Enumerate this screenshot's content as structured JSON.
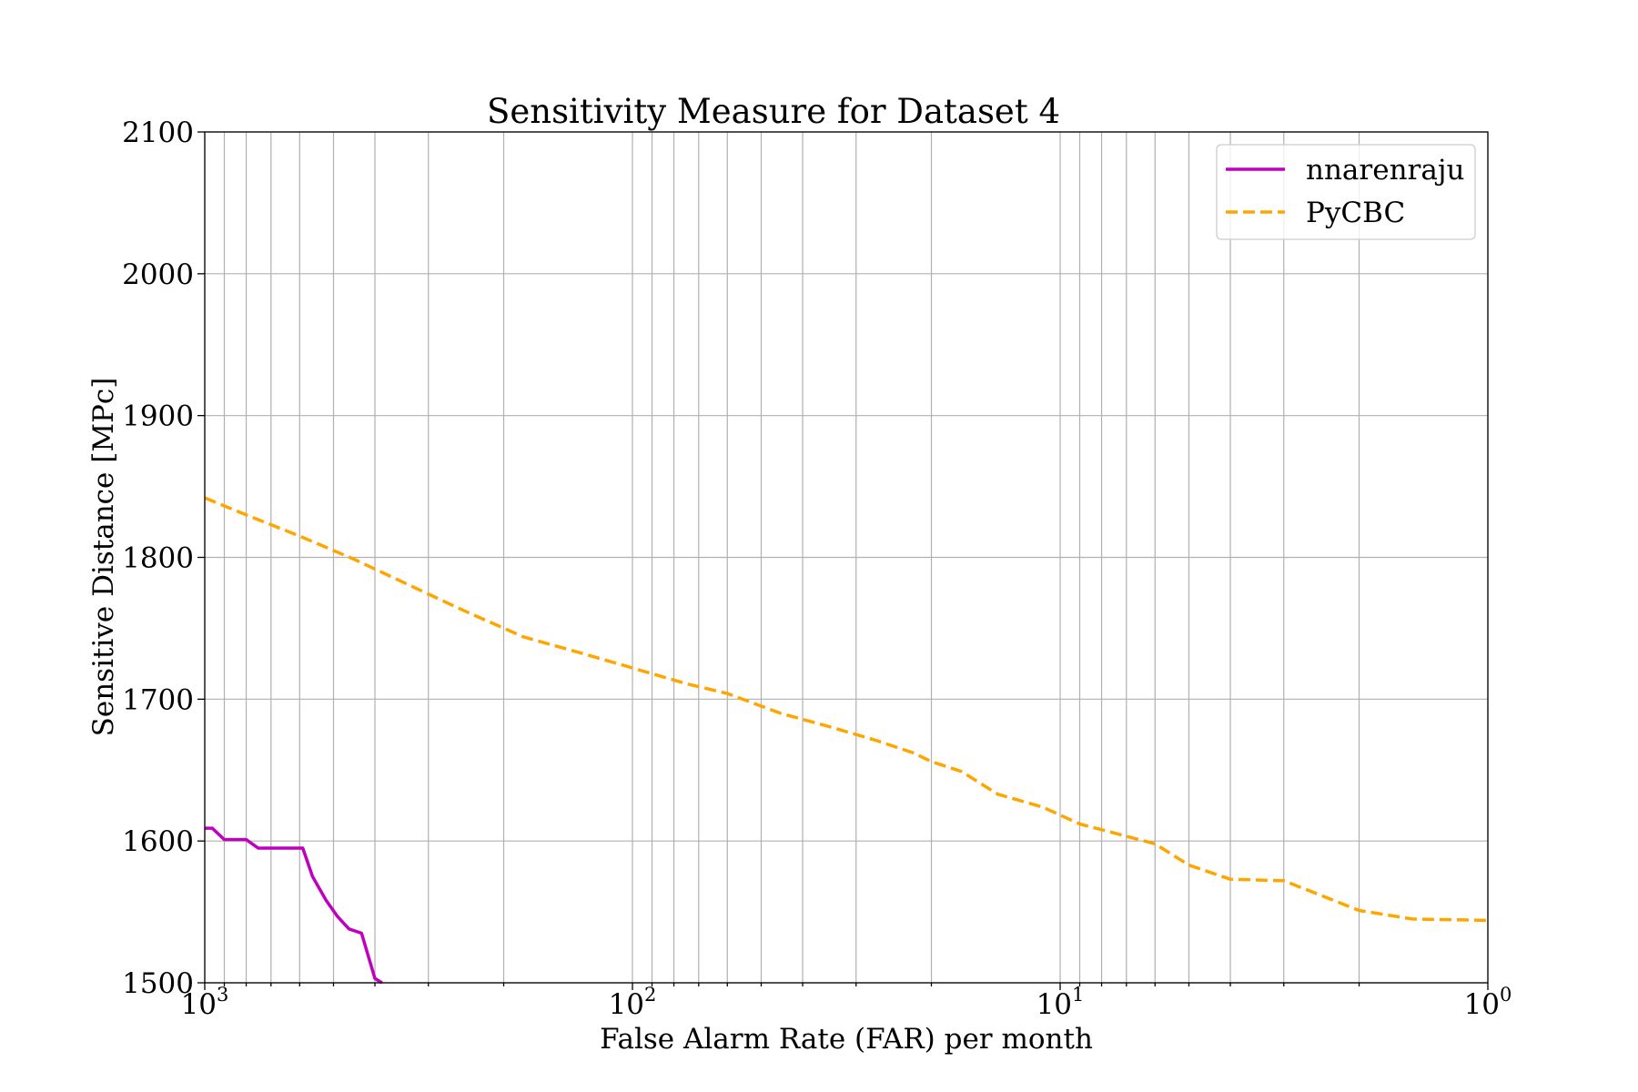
{
  "chart_data": {
    "type": "line",
    "title": "Sensitivity Measure for Dataset 4",
    "xlabel": "False Alarm Rate (FAR) per month",
    "ylabel": "Sensitive Distance [MPc]",
    "x_scale": "log",
    "x_inverted": true,
    "xlim": [
      1000,
      1
    ],
    "ylim": [
      1500,
      2100
    ],
    "x_ticks": [
      {
        "base": "10",
        "exp": "3",
        "value": 1000
      },
      {
        "base": "10",
        "exp": "2",
        "value": 100
      },
      {
        "base": "10",
        "exp": "1",
        "value": 10
      },
      {
        "base": "10",
        "exp": "0",
        "value": 1
      }
    ],
    "y_ticks": [
      "1500",
      "1600",
      "1700",
      "1800",
      "1900",
      "2000",
      "2100"
    ],
    "grid": true,
    "legend_position": "top-right",
    "series": [
      {
        "name": "nnarenraju",
        "color": "#bf00bf",
        "style": "solid",
        "x": [
          1000,
          960,
          900,
          850,
          800,
          750,
          700,
          660,
          620,
          590,
          560,
          520,
          490,
          460,
          430,
          400,
          385
        ],
        "y": [
          1609,
          1609,
          1601,
          1601,
          1601,
          1595,
          1595,
          1595,
          1595,
          1595,
          1575,
          1558,
          1547,
          1538,
          1535,
          1503,
          1500
        ]
      },
      {
        "name": "PyCBC",
        "color": "#ffa500",
        "style": "dashed",
        "x": [
          1000,
          800,
          600,
          450,
          330,
          250,
          180,
          130,
          100,
          75,
          60,
          45,
          35,
          27,
          22,
          20,
          17,
          14,
          11,
          9,
          8,
          6,
          5,
          4,
          3,
          2,
          1.5,
          1
        ],
        "y": [
          1842,
          1830,
          1815,
          1799,
          1780,
          1763,
          1744,
          1732,
          1722,
          1711,
          1704,
          1690,
          1681,
          1671,
          1662,
          1656,
          1649,
          1633,
          1624,
          1612,
          1608,
          1598,
          1583,
          1573,
          1572,
          1551,
          1545,
          1544
        ]
      }
    ]
  }
}
